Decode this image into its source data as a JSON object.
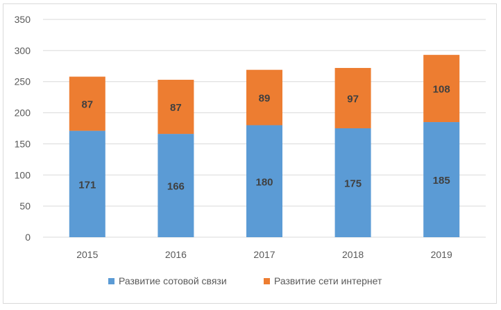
{
  "chart_data": {
    "type": "bar",
    "stacked": true,
    "categories": [
      "2015",
      "2016",
      "2017",
      "2018",
      "2019"
    ],
    "series": [
      {
        "name": "Развитие сотовой связи",
        "values": [
          171,
          166,
          180,
          175,
          185
        ],
        "color": "#5b9bd5"
      },
      {
        "name": "Развитие сети интернет",
        "values": [
          87,
          87,
          89,
          97,
          108
        ],
        "color": "#ed7d31"
      }
    ],
    "title": "",
    "xlabel": "",
    "ylabel": "",
    "ylim": [
      0,
      350
    ],
    "yticks": [
      "0",
      "50",
      "100",
      "150",
      "200",
      "250",
      "300",
      "350"
    ],
    "grid": true,
    "legend": "bottom",
    "data_labels": true
  }
}
